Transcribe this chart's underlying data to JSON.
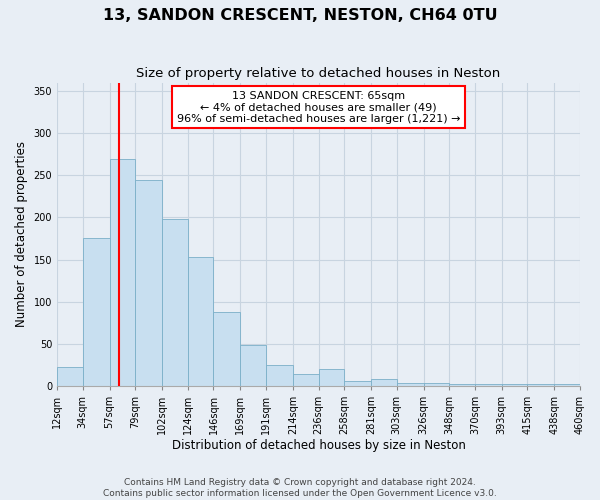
{
  "title": "13, SANDON CRESCENT, NESTON, CH64 0TU",
  "subtitle": "Size of property relative to detached houses in Neston",
  "xlabel": "Distribution of detached houses by size in Neston",
  "ylabel": "Number of detached properties",
  "bin_edges": [
    12,
    34,
    57,
    79,
    102,
    124,
    146,
    169,
    191,
    214,
    236,
    258,
    281,
    303,
    326,
    348,
    370,
    393,
    415,
    438,
    460
  ],
  "bar_heights": [
    22,
    175,
    270,
    245,
    198,
    153,
    88,
    48,
    25,
    14,
    20,
    5,
    8,
    3,
    3,
    2,
    2,
    2,
    2,
    2
  ],
  "bar_color": "#c8dff0",
  "bar_edgecolor": "#7aafc8",
  "redline_x": 65,
  "annotation_box_text": "13 SANDON CRESCENT: 65sqm\n← 4% of detached houses are smaller (49)\n96% of semi-detached houses are larger (1,221) →",
  "ylim": [
    0,
    360
  ],
  "xlim": [
    12,
    460
  ],
  "xtick_labels": [
    "12sqm",
    "34sqm",
    "57sqm",
    "79sqm",
    "102sqm",
    "124sqm",
    "146sqm",
    "169sqm",
    "191sqm",
    "214sqm",
    "236sqm",
    "258sqm",
    "281sqm",
    "303sqm",
    "326sqm",
    "348sqm",
    "370sqm",
    "393sqm",
    "415sqm",
    "438sqm",
    "460sqm"
  ],
  "xtick_positions": [
    12,
    34,
    57,
    79,
    102,
    124,
    146,
    169,
    191,
    214,
    236,
    258,
    281,
    303,
    326,
    348,
    370,
    393,
    415,
    438,
    460
  ],
  "ytick_positions": [
    0,
    50,
    100,
    150,
    200,
    250,
    300,
    350
  ],
  "footer_line1": "Contains HM Land Registry data © Crown copyright and database right 2024.",
  "footer_line2": "Contains public sector information licensed under the Open Government Licence v3.0.",
  "background_color": "#e8eef5",
  "plot_bg_color": "#e8eef5",
  "grid_color": "#c8d4e0",
  "title_fontsize": 11.5,
  "subtitle_fontsize": 9.5,
  "axis_label_fontsize": 8.5,
  "tick_fontsize": 7,
  "annotation_fontsize": 8,
  "footer_fontsize": 6.5
}
